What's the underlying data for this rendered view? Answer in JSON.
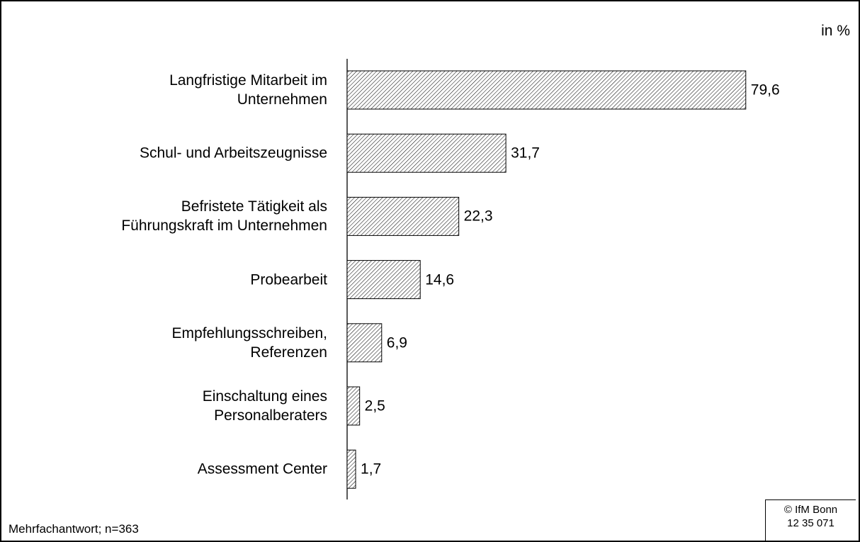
{
  "chart_data": {
    "type": "bar",
    "orientation": "horizontal",
    "unit_label": "in %",
    "categories": [
      "Langfristige Mitarbeit im\nUnternehmen",
      "Schul- und Arbeitszeugnisse",
      "Befristete Tätigkeit als\nFührungskraft im Unternehmen",
      "Probearbeit",
      "Empfehlungsschreiben,\nReferenzen",
      "Einschaltung eines\nPersonalberaters",
      "Assessment Center"
    ],
    "values": [
      79.6,
      31.7,
      22.3,
      14.6,
      6.9,
      2.5,
      1.7
    ],
    "value_labels": [
      "79,6",
      "31,7",
      "22,3",
      "14,6",
      "6,9",
      "2,5",
      "1,7"
    ],
    "color": "#000000",
    "xlim": [
      0,
      100
    ],
    "footnote": "Mehrfachantwort; n=363",
    "source": "© IfM Bonn\n12 35 071"
  }
}
